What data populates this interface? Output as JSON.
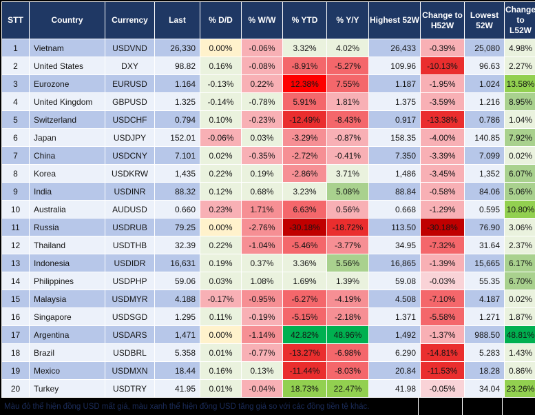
{
  "table": {
    "columns": [
      {
        "key": "stt",
        "label": "STT"
      },
      {
        "key": "country",
        "label": "Country"
      },
      {
        "key": "currency",
        "label": "Currency"
      },
      {
        "key": "last",
        "label": "Last"
      },
      {
        "key": "dd",
        "label": "% D/D"
      },
      {
        "key": "ww",
        "label": "% W/W"
      },
      {
        "key": "ytd",
        "label": "% YTD"
      },
      {
        "key": "yy",
        "label": "% Y/Y"
      },
      {
        "key": "high",
        "label": "Highest 52W"
      },
      {
        "key": "chg_h",
        "label": "Change to H52W"
      },
      {
        "key": "low",
        "label": "Lowest 52W"
      },
      {
        "key": "chg_l",
        "label": "Change to L52W"
      }
    ],
    "rows": [
      {
        "stt": "1",
        "country": "Vietnam",
        "currency": "USDVND",
        "last": "26,330",
        "dd": {
          "v": "0.00%",
          "c": "Y"
        },
        "ww": {
          "v": "-0.06%",
          "c": "R0"
        },
        "ytd": {
          "v": "3.32%",
          "c": "G0"
        },
        "yy": {
          "v": "4.02%",
          "c": "G0"
        },
        "high": "26,433",
        "chg_h": {
          "v": "-0.39%",
          "c": "R0"
        },
        "low": "25,080",
        "chg_l": {
          "v": "4.98%",
          "c": "G0"
        }
      },
      {
        "stt": "2",
        "country": "United States",
        "currency": "DXY",
        "last": "98.82",
        "dd": {
          "v": "0.16%",
          "c": "G0"
        },
        "ww": {
          "v": "-0.08%",
          "c": "R0"
        },
        "ytd": {
          "v": "-8.91%",
          "c": "R2"
        },
        "yy": {
          "v": "-5.27%",
          "c": "R2"
        },
        "high": "109.96",
        "chg_h": {
          "v": "-10.13%",
          "c": "R3"
        },
        "low": "96.63",
        "chg_l": {
          "v": "2.27%",
          "c": "G0"
        }
      },
      {
        "stt": "3",
        "country": "Eurozone",
        "currency": "EURUSD",
        "last": "1.164",
        "dd": {
          "v": "-0.13%",
          "c": "G0"
        },
        "ww": {
          "v": "0.22%",
          "c": "R0"
        },
        "ytd": {
          "v": "12.38%",
          "c": "R4"
        },
        "yy": {
          "v": "7.55%",
          "c": "R2"
        },
        "high": "1.187",
        "chg_h": {
          "v": "-1.95%",
          "c": "R0"
        },
        "low": "1.024",
        "chg_l": {
          "v": "13.58%",
          "c": "G2"
        }
      },
      {
        "stt": "4",
        "country": "United Kingdom",
        "currency": "GBPUSD",
        "last": "1.325",
        "dd": {
          "v": "-0.14%",
          "c": "G0"
        },
        "ww": {
          "v": "-0.78%",
          "c": "G0"
        },
        "ytd": {
          "v": "5.91%",
          "c": "R2"
        },
        "yy": {
          "v": "1.81%",
          "c": "R0"
        },
        "high": "1.375",
        "chg_h": {
          "v": "-3.59%",
          "c": "R0"
        },
        "low": "1.216",
        "chg_l": {
          "v": "8.95%",
          "c": "G1"
        }
      },
      {
        "stt": "5",
        "country": "Switzerland",
        "currency": "USDCHF",
        "last": "0.794",
        "dd": {
          "v": "0.10%",
          "c": "G0"
        },
        "ww": {
          "v": "-0.23%",
          "c": "R0"
        },
        "ytd": {
          "v": "-12.49%",
          "c": "R3"
        },
        "yy": {
          "v": "-8.43%",
          "c": "R2"
        },
        "high": "0.917",
        "chg_h": {
          "v": "-13.38%",
          "c": "R3"
        },
        "low": "0.786",
        "chg_l": {
          "v": "1.04%",
          "c": "G0"
        }
      },
      {
        "stt": "6",
        "country": "Japan",
        "currency": "USDJPY",
        "last": "152.01",
        "dd": {
          "v": "-0.06%",
          "c": "R0"
        },
        "ww": {
          "v": "0.03%",
          "c": "G0"
        },
        "ytd": {
          "v": "-3.29%",
          "c": "R1"
        },
        "yy": {
          "v": "-0.87%",
          "c": "R0"
        },
        "high": "158.35",
        "chg_h": {
          "v": "-4.00%",
          "c": "R0"
        },
        "low": "140.85",
        "chg_l": {
          "v": "7.92%",
          "c": "G1"
        }
      },
      {
        "stt": "7",
        "country": "China",
        "currency": "USDCNY",
        "last": "7.101",
        "dd": {
          "v": "0.02%",
          "c": "G0"
        },
        "ww": {
          "v": "-0.35%",
          "c": "R0"
        },
        "ytd": {
          "v": "-2.72%",
          "c": "R1"
        },
        "yy": {
          "v": "-0.41%",
          "c": "R0"
        },
        "high": "7.350",
        "chg_h": {
          "v": "-3.39%",
          "c": "R0"
        },
        "low": "7.099",
        "chg_l": {
          "v": "0.02%",
          "c": "G0"
        }
      },
      {
        "stt": "8",
        "country": "Korea",
        "currency": "USDKRW",
        "last": "1,435",
        "dd": {
          "v": "0.22%",
          "c": "G0"
        },
        "ww": {
          "v": "0.19%",
          "c": "G0"
        },
        "ytd": {
          "v": "-2.86%",
          "c": "R1"
        },
        "yy": {
          "v": "3.71%",
          "c": "G0"
        },
        "high": "1,486",
        "chg_h": {
          "v": "-3.45%",
          "c": "R0"
        },
        "low": "1,352",
        "chg_l": {
          "v": "6.07%",
          "c": "G1"
        }
      },
      {
        "stt": "9",
        "country": "India",
        "currency": "USDINR",
        "last": "88.32",
        "dd": {
          "v": "0.12%",
          "c": "G0"
        },
        "ww": {
          "v": "0.68%",
          "c": "G0"
        },
        "ytd": {
          "v": "3.23%",
          "c": "G0"
        },
        "yy": {
          "v": "5.08%",
          "c": "G1"
        },
        "high": "88.84",
        "chg_h": {
          "v": "-0.58%",
          "c": "R0"
        },
        "low": "84.06",
        "chg_l": {
          "v": "5.06%",
          "c": "G1"
        }
      },
      {
        "stt": "10",
        "country": "Australia",
        "currency": "AUDUSD",
        "last": "0.660",
        "dd": {
          "v": "0.23%",
          "c": "R0"
        },
        "ww": {
          "v": "1.71%",
          "c": "R1"
        },
        "ytd": {
          "v": "6.63%",
          "c": "R2"
        },
        "yy": {
          "v": "0.56%",
          "c": "R0"
        },
        "high": "0.668",
        "chg_h": {
          "v": "-1.29%",
          "c": "R0"
        },
        "low": "0.595",
        "chg_l": {
          "v": "10.80%",
          "c": "G2"
        }
      },
      {
        "stt": "11",
        "country": "Russia",
        "currency": "USDRUB",
        "last": "79.25",
        "dd": {
          "v": "0.00%",
          "c": "Y"
        },
        "ww": {
          "v": "-2.76%",
          "c": "R1"
        },
        "ytd": {
          "v": "-30.18%",
          "c": "R5"
        },
        "yy": {
          "v": "-18.72%",
          "c": "R3"
        },
        "high": "113.50",
        "chg_h": {
          "v": "-30.18%",
          "c": "R5"
        },
        "low": "76.90",
        "chg_l": {
          "v": "3.06%",
          "c": "G0"
        }
      },
      {
        "stt": "12",
        "country": "Thailand",
        "currency": "USDTHB",
        "last": "32.39",
        "dd": {
          "v": "0.22%",
          "c": "G0"
        },
        "ww": {
          "v": "-1.04%",
          "c": "R1"
        },
        "ytd": {
          "v": "-5.46%",
          "c": "R2"
        },
        "yy": {
          "v": "-3.77%",
          "c": "R1"
        },
        "high": "34.95",
        "chg_h": {
          "v": "-7.32%",
          "c": "R2"
        },
        "low": "31.64",
        "chg_l": {
          "v": "2.37%",
          "c": "G0"
        }
      },
      {
        "stt": "13",
        "country": "Indonesia",
        "currency": "USDIDR",
        "last": "16,631",
        "dd": {
          "v": "0.19%",
          "c": "G0"
        },
        "ww": {
          "v": "0.37%",
          "c": "G0"
        },
        "ytd": {
          "v": "3.36%",
          "c": "G0"
        },
        "yy": {
          "v": "5.56%",
          "c": "G1"
        },
        "high": "16,865",
        "chg_h": {
          "v": "-1.39%",
          "c": "R0"
        },
        "low": "15,665",
        "chg_l": {
          "v": "6.17%",
          "c": "G1"
        }
      },
      {
        "stt": "14",
        "country": "Philippines",
        "currency": "USDPHP",
        "last": "59.06",
        "dd": {
          "v": "0.03%",
          "c": "G0"
        },
        "ww": {
          "v": "1.08%",
          "c": "G0"
        },
        "ytd": {
          "v": "1.69%",
          "c": "G0"
        },
        "yy": {
          "v": "1.39%",
          "c": "G0"
        },
        "high": "59.08",
        "chg_h": {
          "v": "-0.03%",
          "c": "R00"
        },
        "low": "55.35",
        "chg_l": {
          "v": "6.70%",
          "c": "G1"
        }
      },
      {
        "stt": "15",
        "country": "Malaysia",
        "currency": "USDMYR",
        "last": "4.188",
        "dd": {
          "v": "-0.17%",
          "c": "R0"
        },
        "ww": {
          "v": "-0.95%",
          "c": "R1"
        },
        "ytd": {
          "v": "-6.27%",
          "c": "R2"
        },
        "yy": {
          "v": "-4.19%",
          "c": "R1"
        },
        "high": "4.508",
        "chg_h": {
          "v": "-7.10%",
          "c": "R2"
        },
        "low": "4.187",
        "chg_l": {
          "v": "0.02%",
          "c": "G0"
        }
      },
      {
        "stt": "16",
        "country": "Singapore",
        "currency": "USDSGD",
        "last": "1.295",
        "dd": {
          "v": "0.11%",
          "c": "G0"
        },
        "ww": {
          "v": "-0.19%",
          "c": "R0"
        },
        "ytd": {
          "v": "-5.15%",
          "c": "R2"
        },
        "yy": {
          "v": "-2.18%",
          "c": "R1"
        },
        "high": "1.371",
        "chg_h": {
          "v": "-5.58%",
          "c": "R2"
        },
        "low": "1.271",
        "chg_l": {
          "v": "1.87%",
          "c": "G0"
        }
      },
      {
        "stt": "17",
        "country": "Argentina",
        "currency": "USDARS",
        "last": "1,471",
        "dd": {
          "v": "0.00%",
          "c": "Y"
        },
        "ww": {
          "v": "-1.14%",
          "c": "R1"
        },
        "ytd": {
          "v": "42.82%",
          "c": "G3"
        },
        "yy": {
          "v": "48.96%",
          "c": "G3"
        },
        "high": "1,492",
        "chg_h": {
          "v": "-1.37%",
          "c": "R0"
        },
        "low": "988.50",
        "chg_l": {
          "v": "48.81%",
          "c": "G3"
        }
      },
      {
        "stt": "18",
        "country": "Brazil",
        "currency": "USDBRL",
        "last": "5.358",
        "dd": {
          "v": "0.01%",
          "c": "G0"
        },
        "ww": {
          "v": "-0.77%",
          "c": "R0"
        },
        "ytd": {
          "v": "-13.27%",
          "c": "R3"
        },
        "yy": {
          "v": "-6.98%",
          "c": "R2"
        },
        "high": "6.290",
        "chg_h": {
          "v": "-14.81%",
          "c": "R3"
        },
        "low": "5.283",
        "chg_l": {
          "v": "1.43%",
          "c": "G0"
        }
      },
      {
        "stt": "19",
        "country": "Mexico",
        "currency": "USDMXN",
        "last": "18.44",
        "dd": {
          "v": "0.16%",
          "c": "G0"
        },
        "ww": {
          "v": "0.13%",
          "c": "G0"
        },
        "ytd": {
          "v": "-11.44%",
          "c": "R3"
        },
        "yy": {
          "v": "-8.03%",
          "c": "R2"
        },
        "high": "20.84",
        "chg_h": {
          "v": "-11.53%",
          "c": "R3"
        },
        "low": "18.28",
        "chg_l": {
          "v": "0.86%",
          "c": "G0"
        }
      },
      {
        "stt": "20",
        "country": "Turkey",
        "currency": "USDTRY",
        "last": "41.95",
        "dd": {
          "v": "0.01%",
          "c": "G0"
        },
        "ww": {
          "v": "-0.04%",
          "c": "R0"
        },
        "ytd": {
          "v": "18.73%",
          "c": "G2"
        },
        "yy": {
          "v": "22.47%",
          "c": "G2"
        },
        "high": "41.98",
        "chg_h": {
          "v": "-0.05%",
          "c": "R00"
        },
        "low": "34.04",
        "chg_l": {
          "v": "23.26%",
          "c": "G2"
        }
      }
    ]
  },
  "footer": {
    "note": "Màu đỏ thể hiện đồng USD mất giá, màu xanh thể hiện đồng USD tăng giá so với các đồng tiền tệ khác."
  },
  "palette": {
    "headerBg": "#1F3864",
    "headerText": "#FFFFFF",
    "rowOdd": "#B7C7E9",
    "rowEven": "#ECF1FA",
    "cellText": "#141414",
    "gridline": "#FFFFFF",
    "outerBorder": "#000000",
    "footerBg": "#000000",
    "footerText": "#1B2C5A",
    "Y": "#FFF2CC",
    "G0": "#EAF2DE",
    "G1": "#A9D18E",
    "G2": "#92D050",
    "G3": "#00B050",
    "R00": "#F9D3D7",
    "R0": "#F8B0B5",
    "R1": "#F68F94",
    "R2": "#F4676B",
    "R3": "#EA2E2E",
    "R4": "#FE0000",
    "R5": "#C00000"
  }
}
